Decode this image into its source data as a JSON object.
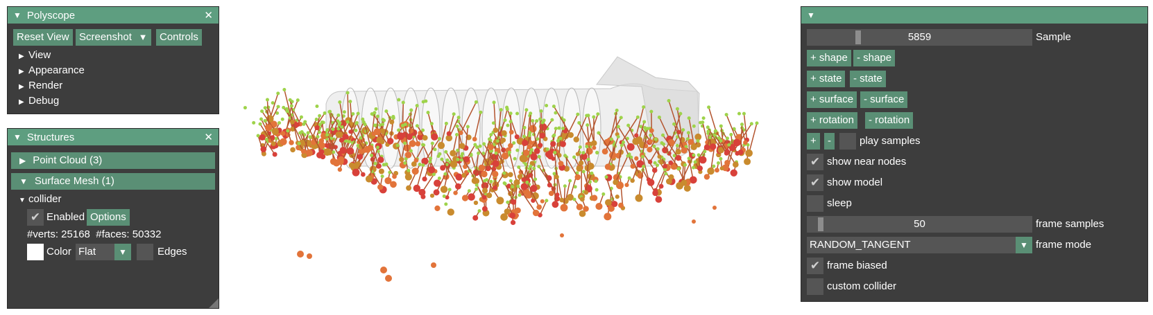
{
  "polyscope": {
    "title": "Polyscope",
    "buttons": {
      "reset_view": "Reset View",
      "screenshot": "Screenshot",
      "controls": "Controls"
    },
    "tree": [
      "View",
      "Appearance",
      "Render",
      "Debug"
    ]
  },
  "structures": {
    "title": "Structures",
    "point_cloud_header": "Point Cloud (3)",
    "surface_mesh_header": "Surface Mesh (1)",
    "collider": {
      "name": "collider",
      "enabled_label": "Enabled",
      "enabled_checked": true,
      "options_label": "Options",
      "stats": "#verts: 25168  #faces: 50332",
      "color_label": "Color",
      "color_value": "#ffffff",
      "shade_mode": "Flat",
      "edges_label": "Edges",
      "edges_checked": false
    }
  },
  "controls": {
    "sample": {
      "value": "5859",
      "label": "Sample",
      "fraction": 0.22
    },
    "buttons": {
      "add_shape": "+ shape",
      "remove_shape": "- shape",
      "add_state": "+ state",
      "remove_state": "- state",
      "add_surface": "+ surface",
      "remove_surface": "- surface",
      "add_rotation": "+ rotation",
      "remove_rotation": "- rotation",
      "plus": "+",
      "minus": "-"
    },
    "play_samples": {
      "label": "play samples",
      "checked": false
    },
    "show_near_nodes": {
      "label": "show near nodes",
      "checked": true
    },
    "show_model": {
      "label": "show model",
      "checked": true
    },
    "sleep": {
      "label": "sleep",
      "checked": false
    },
    "frame_samples": {
      "value": "50",
      "label": "frame samples",
      "fraction": 0.05
    },
    "frame_mode": {
      "value": "RANDOM_TANGENT",
      "label": "frame mode"
    },
    "frame_biased": {
      "label": "frame biased",
      "checked": true
    },
    "custom_collider": {
      "label": "custom collider",
      "checked": false
    }
  },
  "viewport": {
    "ridge_count": 13,
    "point_colors": [
      "#d8413a",
      "#e2743a",
      "#c98b2e",
      "#9ed34a"
    ],
    "stem_color": "#b3542e",
    "mesh_color": "#dcdcdc"
  },
  "icons": {
    "collapse": "triangle-down-icon",
    "expand": "triangle-right-icon",
    "close": "close-icon",
    "check": "checkmark-icon",
    "dropdown": "dropdown-arrow-icon",
    "resize": "resize-grip-icon"
  }
}
